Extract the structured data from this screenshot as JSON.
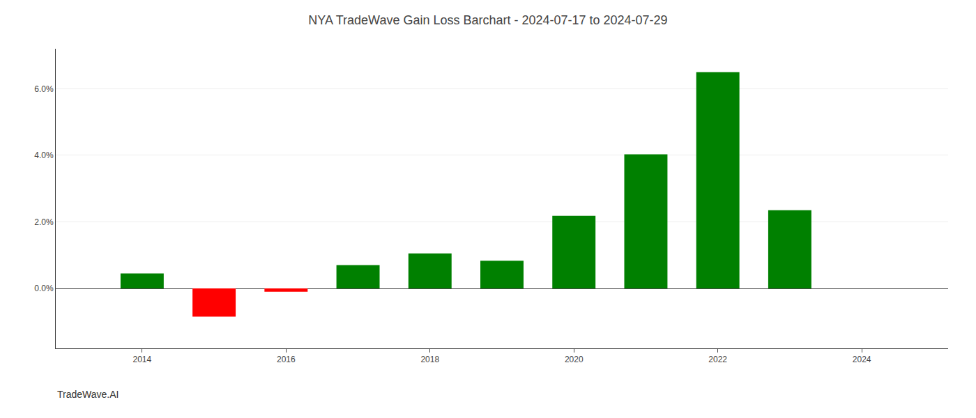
{
  "chart_data": {
    "type": "bar",
    "title": "NYA TradeWave Gain Loss Barchart - 2024-07-17 to 2024-07-29",
    "annotations": [
      "TradeWave.AI"
    ],
    "x": [
      2014,
      2015,
      2016,
      2017,
      2018,
      2019,
      2020,
      2021,
      2022,
      2023
    ],
    "values": [
      0.0045,
      -0.0085,
      -0.001,
      0.007,
      0.0105,
      0.0083,
      0.0218,
      0.0403,
      0.065,
      0.0235
    ],
    "colors": [
      "#008000",
      "#ff0000",
      "#ff0000",
      "#008000",
      "#008000",
      "#008000",
      "#008000",
      "#008000",
      "#008000",
      "#008000"
    ],
    "xlim": [
      2012.8,
      2025.2
    ],
    "xticks": [
      2014,
      2016,
      2018,
      2020,
      2022,
      2024
    ],
    "ylim": [
      -0.018,
      0.072
    ],
    "yticks": [
      {
        "value": 0.0,
        "label": "0.0%"
      },
      {
        "value": 0.02,
        "label": "2.0%"
      },
      {
        "value": 0.04,
        "label": "4.0%"
      },
      {
        "value": 0.06,
        "label": "6.0%"
      }
    ],
    "grid": true
  }
}
